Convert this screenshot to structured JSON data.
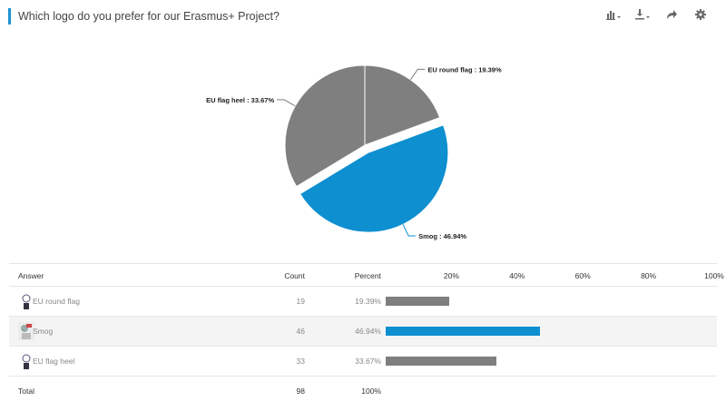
{
  "header": {
    "title": "Which logo do you prefer for our Erasmus+ Project?",
    "icons": [
      "chart-type-icon",
      "download-icon",
      "share-icon",
      "settings-icon"
    ]
  },
  "colors": {
    "accent": "#1f93d3",
    "grey_slice": "#7f7f7f",
    "blue_slice": "#0e8fd0"
  },
  "chart_data": {
    "type": "pie",
    "slices": [
      {
        "name": "EU round flag",
        "value": 19.39,
        "color": "#7f7f7f",
        "label": "EU round flag : 19.39%"
      },
      {
        "name": "Smog",
        "value": 46.94,
        "color": "#0e8fd0",
        "label": "Smog : 46.94%",
        "exploded": true
      },
      {
        "name": "EU flag heel",
        "value": 33.67,
        "color": "#7f7f7f",
        "label": "EU flag heel : 33.67%"
      }
    ]
  },
  "table": {
    "headers": {
      "answer": "Answer",
      "count": "Count",
      "percent": "Percent"
    },
    "axis_ticks": [
      "20%",
      "40%",
      "60%",
      "80%",
      "100%"
    ],
    "axis_tick_values": [
      20,
      40,
      60,
      80,
      100
    ],
    "rows": [
      {
        "label": "EU round flag",
        "count": "19",
        "percent": "19.39%",
        "value": 19.39,
        "color": "#7f7f7f"
      },
      {
        "label": "Smog",
        "count": "46",
        "percent": "46.94%",
        "value": 46.94,
        "color": "#0e8fd0"
      },
      {
        "label": "EU flag heel",
        "count": "33",
        "percent": "33.67%",
        "value": 33.67,
        "color": "#7f7f7f"
      }
    ],
    "total": {
      "label": "Total",
      "count": "98",
      "percent": "100%"
    }
  }
}
